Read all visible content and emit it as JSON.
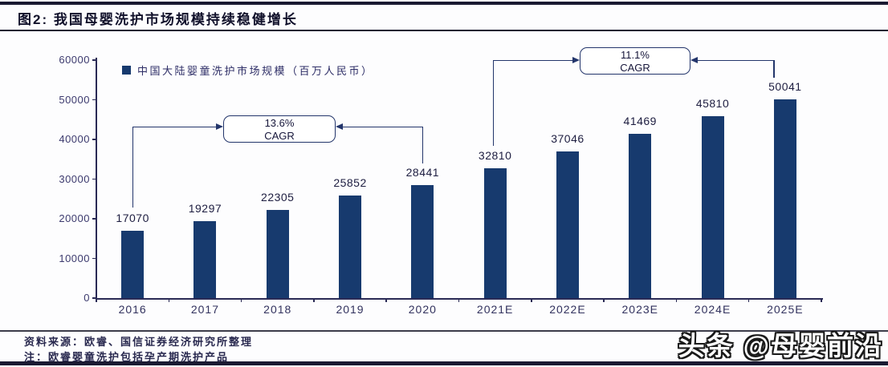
{
  "header": {
    "title": "图2: 我国母婴洗护市场规模持续稳健增长"
  },
  "chart_data": {
    "type": "bar",
    "title": "我国母婴洗护市场规模持续稳健增长",
    "legend": "中国大陆婴童洗护市场规模（百万人民币）",
    "legend_position": "top-left",
    "categories": [
      "2016",
      "2017",
      "2018",
      "2019",
      "2020",
      "2021E",
      "2022E",
      "2023E",
      "2024E",
      "2025E"
    ],
    "values": [
      17070,
      19297,
      22305,
      25852,
      28441,
      32810,
      37046,
      41469,
      45810,
      50041
    ],
    "ylim": [
      0,
      60000
    ],
    "yticks": [
      0,
      10000,
      20000,
      30000,
      40000,
      50000,
      60000
    ],
    "grid": false,
    "bar_color": "#173a6e",
    "annotations": [
      {
        "rate": "13.6%",
        "label": "CAGR",
        "from": "2016",
        "to": "2020"
      },
      {
        "rate": "11.1%",
        "label": "CAGR",
        "from": "2021E",
        "to": "2025E"
      }
    ]
  },
  "footer": {
    "source": "资料来源：欧睿、国信证券经济研究所整理",
    "note": "注：欧睿婴童洗护包括孕产期洗护产品"
  },
  "watermark": "头条 @母婴前沿",
  "colors": {
    "bar": "#173a6e",
    "annotation_line": "#23356b",
    "axis_text": "#3c3a6e",
    "value_text": "#1d1d40",
    "rule": "#1a1a32"
  }
}
